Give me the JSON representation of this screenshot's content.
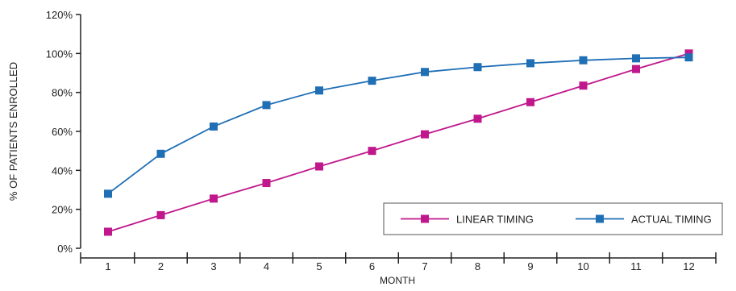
{
  "chart_data": {
    "type": "line",
    "title": "",
    "xlabel": "MONTH",
    "ylabel": "% OF PATIENTS ENROLLED",
    "x": [
      1,
      2,
      3,
      4,
      5,
      6,
      7,
      8,
      9,
      10,
      11,
      12
    ],
    "x_tick_labels": [
      "1",
      "2",
      "3",
      "4",
      "5",
      "6",
      "7",
      "8",
      "9",
      "10",
      "11",
      "12"
    ],
    "ylim": [
      0,
      120
    ],
    "y_ticks": [
      0,
      20,
      40,
      60,
      80,
      100,
      120
    ],
    "y_tick_labels": [
      "0%",
      "20%",
      "40%",
      "60%",
      "80%",
      "100%",
      "120%"
    ],
    "grid": false,
    "legend_position": "bottom-right",
    "series": [
      {
        "name": "LINEAR TIMING",
        "color": "#c0178c",
        "marker": "square",
        "values": [
          8.5,
          17,
          25.5,
          33.5,
          42,
          50,
          58.5,
          66.5,
          75,
          83.5,
          92,
          100
        ]
      },
      {
        "name": "ACTUAL TIMING",
        "color": "#1f6fb5",
        "marker": "square",
        "values": [
          28,
          48.5,
          62.5,
          73.5,
          81,
          86,
          90.5,
          93,
          95,
          96.5,
          97.5,
          98
        ]
      }
    ]
  }
}
